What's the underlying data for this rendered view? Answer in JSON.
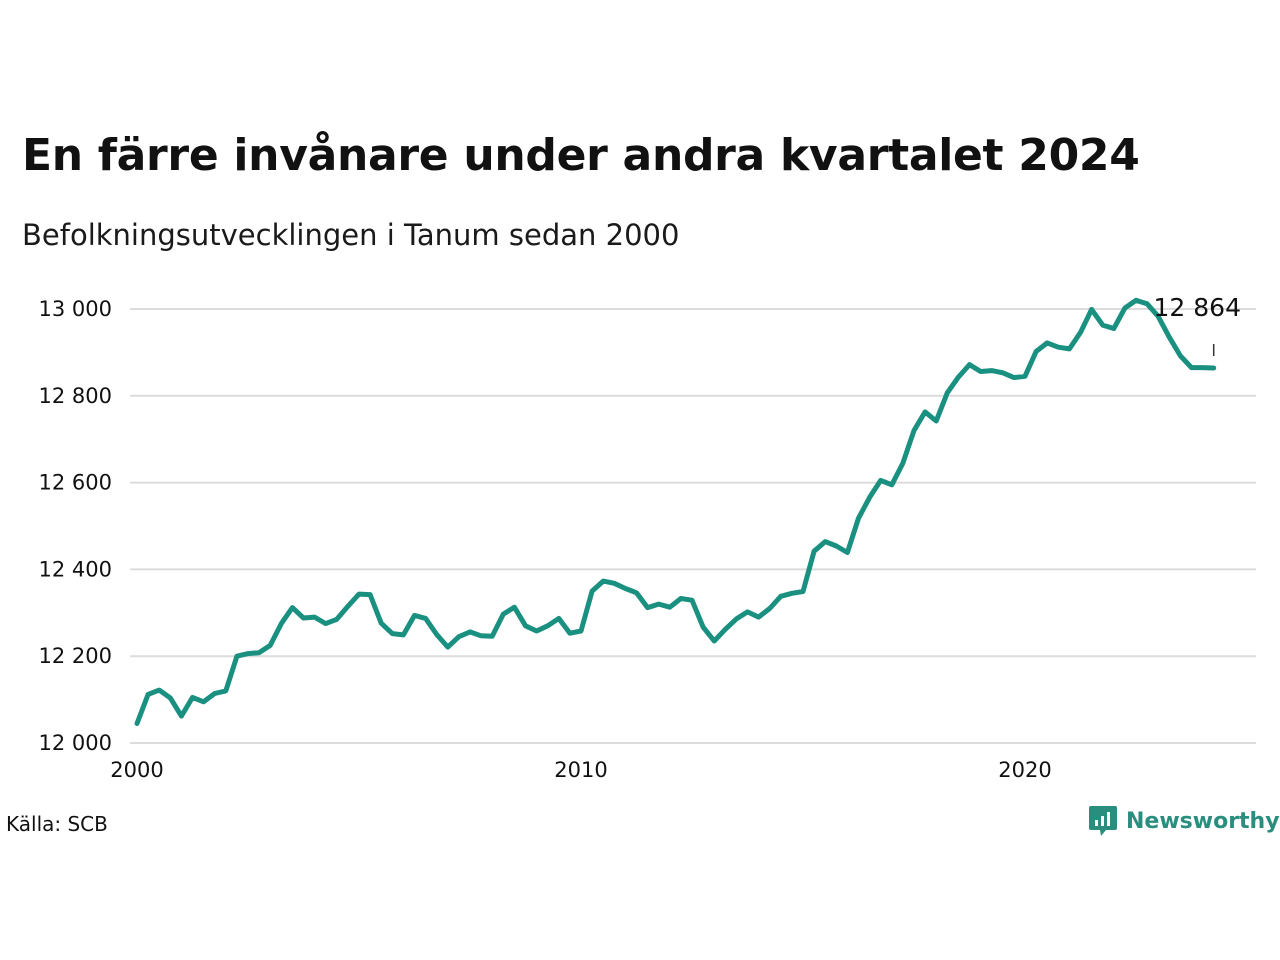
{
  "title": "En färre invånare under andra kvartalet 2024",
  "subtitle": "Befolkningsutvecklingen i Tanum sedan 2000",
  "source": "Källa: SCB",
  "brand": {
    "name": "Newsworthy",
    "icon": "newsworthy-logo-icon",
    "color": "#2a8e7f"
  },
  "chart_data": {
    "type": "line",
    "title": "En färre invånare under andra kvartalet 2024",
    "subtitle": "Befolkningsutvecklingen i Tanum sedan 2000",
    "xlabel": "",
    "ylabel": "",
    "xlim": [
      2000,
      2025
    ],
    "ylim": [
      12000,
      13000
    ],
    "y_ticks": [
      12000,
      12200,
      12400,
      12600,
      12800,
      13000
    ],
    "y_tick_labels": [
      "12 000",
      "12 200",
      "12 400",
      "12 600",
      "12 800",
      "13 000"
    ],
    "x_ticks": [
      2000,
      2010,
      2020
    ],
    "x_tick_labels": [
      "2000",
      "2010",
      "2020"
    ],
    "grid": "horizontal",
    "line_color": "#1a9080",
    "last_value_label": "12 864",
    "series": [
      {
        "x": [
          2000.0,
          2000.25,
          2000.5,
          2000.75,
          2001.0,
          2001.25,
          2001.5,
          2001.75,
          2002.0,
          2002.25,
          2002.5,
          2002.75,
          2003.0,
          2003.25,
          2003.5,
          2003.75,
          2004.0,
          2004.25,
          2004.5,
          2004.75,
          2005.0,
          2005.25,
          2005.5,
          2005.75,
          2006.0,
          2006.25,
          2006.5,
          2006.75,
          2007.0,
          2007.25,
          2007.5,
          2007.75,
          2008.0,
          2008.25,
          2008.5,
          2008.75,
          2009.0,
          2009.25,
          2009.5,
          2009.75,
          2010.0,
          2010.25,
          2010.5,
          2010.75,
          2011.0,
          2011.25,
          2011.5,
          2011.75,
          2012.0,
          2012.25,
          2012.5,
          2012.75,
          2013.0,
          2013.25,
          2013.5,
          2013.75,
          2014.0,
          2014.25,
          2014.5,
          2014.75,
          2015.0,
          2015.25,
          2015.5,
          2015.75,
          2016.0,
          2016.25,
          2016.5,
          2016.75,
          2017.0,
          2017.25,
          2017.5,
          2017.75,
          2018.0,
          2018.25,
          2018.5,
          2018.75,
          2019.0,
          2019.25,
          2019.5,
          2019.75,
          2020.0,
          2020.25,
          2020.5,
          2020.75,
          2021.0,
          2021.25,
          2021.5,
          2021.75,
          2022.0,
          2022.25,
          2022.5,
          2022.75,
          2023.0,
          2023.25,
          2023.5,
          2023.75,
          2024.0,
          2024.25
        ],
        "values": [
          12045,
          12112,
          12122,
          12104,
          12062,
          12105,
          12095,
          12114,
          12120,
          12200,
          12206,
          12208,
          12225,
          12275,
          12312,
          12288,
          12290,
          12275,
          12285,
          12315,
          12343,
          12342,
          12276,
          12252,
          12249,
          12294,
          12287,
          12250,
          12221,
          12245,
          12256,
          12247,
          12246,
          12297,
          12313,
          12270,
          12258,
          12270,
          12287,
          12253,
          12258,
          12350,
          12373,
          12368,
          12356,
          12346,
          12312,
          12320,
          12313,
          12333,
          12329,
          12267,
          12235,
          12262,
          12286,
          12302,
          12290,
          12310,
          12338,
          12345,
          12349,
          12442,
          12464,
          12454,
          12439,
          12518,
          12566,
          12605,
          12595,
          12645,
          12720,
          12763,
          12742,
          12807,
          12843,
          12872,
          12856,
          12858,
          12853,
          12842,
          12845,
          12902,
          12922,
          12912,
          12908,
          12946,
          12999,
          12963,
          12955,
          13002,
          13020,
          13012,
          12983,
          12935,
          12892,
          12865,
          12865,
          12864
        ]
      }
    ]
  }
}
